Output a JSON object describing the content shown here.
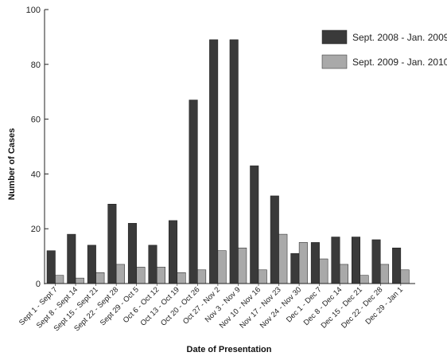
{
  "chart_data": {
    "type": "bar",
    "title": "",
    "xlabel": "Date of Presentation",
    "ylabel": "Number of Cases",
    "ylim": [
      0,
      100
    ],
    "yticks": [
      0,
      20,
      40,
      60,
      80,
      100
    ],
    "grid": false,
    "legend_position": "top-right",
    "categories": [
      "Sept 1 - Sept 7",
      "Sept 8 - Sept 14",
      "Sept 15 - Sept 21",
      "Sept 22 - Sept 28",
      "Sept 29 - Oct 5",
      "Oct 6 - Oct 12",
      "Oct 13 - Oct 19",
      "Oct 20 - Oct 26",
      "Oct 27 - Nov 2",
      "Nov 3 - Nov 9",
      "Nov 10 - Nov 16",
      "Nov 17 - Nov 23",
      "Nov 24 - Nov 30",
      "Dec 1 - Dec 7",
      "Dec 8 - Dec 14",
      "Dec 15 - Dec 21",
      "Dec 22 - Dec 28",
      "Dec 29 - Jan 1"
    ],
    "series": [
      {
        "name": "Sept. 2008 - Jan. 2009",
        "color": "#3a3a3a",
        "values": [
          12,
          18,
          14,
          29,
          22,
          14,
          23,
          67,
          89,
          89,
          43,
          32,
          11,
          15,
          17,
          17,
          16,
          13
        ]
      },
      {
        "name": "Sept. 2009 - Jan. 2010",
        "color": "#a9a9a9",
        "values": [
          3,
          2,
          4,
          7,
          6,
          6,
          4,
          5,
          12,
          13,
          5,
          18,
          15,
          9,
          7,
          3,
          7,
          5
        ]
      }
    ]
  }
}
